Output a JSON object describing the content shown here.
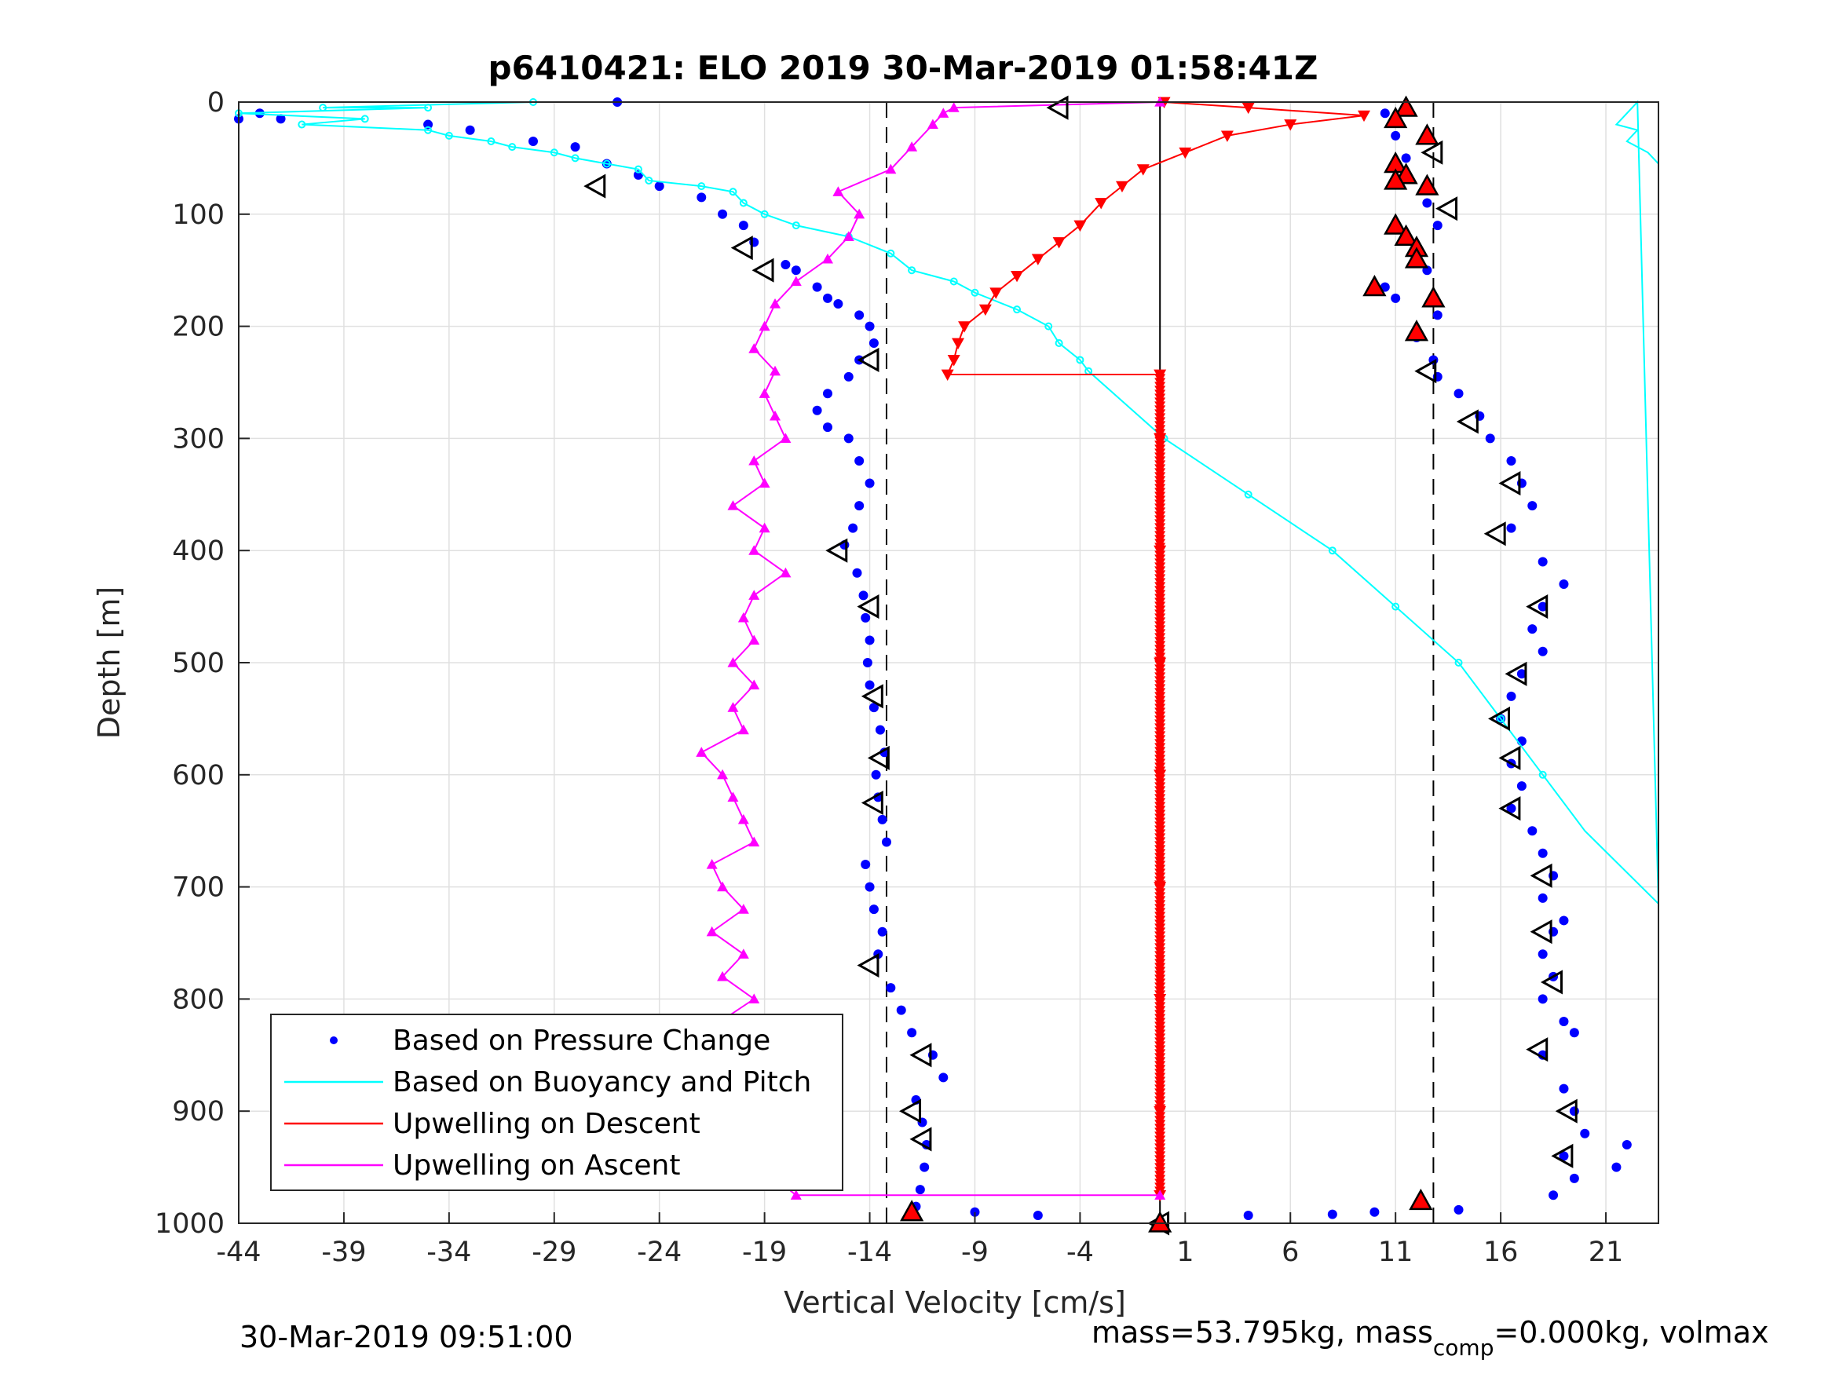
{
  "chart_data": {
    "type": "scatter",
    "title": "p6410421: ELO 2019 30-Mar-2019 01:58:41Z",
    "xlabel": "Vertical Velocity [cm/s]",
    "ylabel": "Depth [m]",
    "xlim": [
      -44,
      23.5
    ],
    "ylim": [
      1000,
      0
    ],
    "y_reversed": true,
    "grid": true,
    "x_ticks": [
      -44,
      -39,
      -34,
      -29,
      -24,
      -19,
      -14,
      -9,
      -4,
      1,
      6,
      11,
      16,
      21
    ],
    "y_ticks": [
      0,
      100,
      200,
      300,
      400,
      500,
      600,
      700,
      800,
      900,
      1000
    ],
    "legend_position": "bottom-left",
    "legend": [
      {
        "label": "Based on Pressure Change",
        "color": "#0000ff",
        "style": "dot"
      },
      {
        "label": "Based on Buoyancy and Pitch",
        "color": "#00ffff",
        "style": "line"
      },
      {
        "label": "Upwelling on Descent",
        "color": "#ff0000",
        "style": "line"
      },
      {
        "label": "Upwelling on Ascent",
        "color": "#ff00ff",
        "style": "line"
      }
    ],
    "reference_lines": {
      "dashed_vertical_x": [
        -13.2,
        12.8
      ],
      "solid_vertical_x": -0.2
    },
    "colors": {
      "pressure": "#0000ff",
      "buoyancy": "#00ffff",
      "descent": "#ff0000",
      "ascent": "#ff00ff",
      "grid": "#e0e0e0"
    },
    "series": [
      {
        "name": "Based on Pressure Change",
        "marker": "dot",
        "points": [
          [
            -26,
            0
          ],
          [
            -44,
            15
          ],
          [
            -43,
            10
          ],
          [
            -42,
            15
          ],
          [
            -35,
            20
          ],
          [
            -33,
            25
          ],
          [
            -30,
            35
          ],
          [
            -28,
            40
          ],
          [
            -26.5,
            55
          ],
          [
            -25,
            65
          ],
          [
            -24,
            75
          ],
          [
            -22,
            85
          ],
          [
            -21,
            100
          ],
          [
            -20,
            110
          ],
          [
            -19.5,
            125
          ],
          [
            -18,
            145
          ],
          [
            -17.5,
            150
          ],
          [
            -16.5,
            165
          ],
          [
            -16,
            175
          ],
          [
            -15.5,
            180
          ],
          [
            -14.5,
            190
          ],
          [
            -14,
            200
          ],
          [
            -13.8,
            215
          ],
          [
            -14.5,
            230
          ],
          [
            -15,
            245
          ],
          [
            -16,
            260
          ],
          [
            -16.5,
            275
          ],
          [
            -16,
            290
          ],
          [
            -15,
            300
          ],
          [
            -14.5,
            320
          ],
          [
            -14,
            340
          ],
          [
            -14.5,
            360
          ],
          [
            -14.8,
            380
          ],
          [
            -15.2,
            395
          ],
          [
            -14.6,
            420
          ],
          [
            -14.3,
            440
          ],
          [
            -14.2,
            460
          ],
          [
            -14.0,
            480
          ],
          [
            -14.1,
            500
          ],
          [
            -14.0,
            520
          ],
          [
            -13.8,
            540
          ],
          [
            -13.5,
            560
          ],
          [
            -13.3,
            580
          ],
          [
            -13.7,
            600
          ],
          [
            -13.6,
            620
          ],
          [
            -13.4,
            640
          ],
          [
            -13.2,
            660
          ],
          [
            -14.2,
            680
          ],
          [
            -14.0,
            700
          ],
          [
            -13.8,
            720
          ],
          [
            -13.4,
            740
          ],
          [
            -13.6,
            760
          ],
          [
            -13.0,
            790
          ],
          [
            -12.5,
            810
          ],
          [
            -12.0,
            830
          ],
          [
            -11.0,
            850
          ],
          [
            -10.5,
            870
          ],
          [
            -11.8,
            890
          ],
          [
            -11.5,
            910
          ],
          [
            -11.3,
            930
          ],
          [
            -11.4,
            950
          ],
          [
            -11.6,
            970
          ],
          [
            -11.8,
            985
          ],
          [
            -9,
            990
          ],
          [
            -6,
            993
          ],
          [
            4,
            993
          ],
          [
            8,
            992
          ],
          [
            10,
            990
          ],
          [
            14,
            988
          ],
          [
            -0.2,
            1000
          ],
          [
            10.5,
            10
          ],
          [
            11,
            30
          ],
          [
            11.5,
            50
          ],
          [
            11,
            70
          ],
          [
            12.5,
            90
          ],
          [
            13,
            110
          ],
          [
            12,
            130
          ],
          [
            12.5,
            150
          ],
          [
            10.5,
            165
          ],
          [
            11,
            175
          ],
          [
            13,
            190
          ],
          [
            12,
            210
          ],
          [
            12.8,
            230
          ],
          [
            13,
            245
          ],
          [
            14,
            260
          ],
          [
            15,
            280
          ],
          [
            15.5,
            300
          ],
          [
            16.5,
            320
          ],
          [
            17,
            340
          ],
          [
            17.5,
            360
          ],
          [
            16.5,
            380
          ],
          [
            18,
            410
          ],
          [
            19,
            430
          ],
          [
            18,
            450
          ],
          [
            17.5,
            470
          ],
          [
            18,
            490
          ],
          [
            17,
            510
          ],
          [
            16.5,
            530
          ],
          [
            16,
            550
          ],
          [
            17,
            570
          ],
          [
            16.5,
            590
          ],
          [
            17,
            610
          ],
          [
            16.5,
            630
          ],
          [
            17.5,
            650
          ],
          [
            18,
            670
          ],
          [
            18.5,
            690
          ],
          [
            18,
            710
          ],
          [
            19,
            730
          ],
          [
            18.5,
            740
          ],
          [
            18,
            760
          ],
          [
            18.5,
            780
          ],
          [
            18,
            800
          ],
          [
            19,
            820
          ],
          [
            19.5,
            830
          ],
          [
            18,
            850
          ],
          [
            19,
            880
          ],
          [
            19.5,
            900
          ],
          [
            20,
            920
          ],
          [
            19,
            940
          ],
          [
            19.5,
            960
          ],
          [
            18.5,
            975
          ],
          [
            22,
            930
          ],
          [
            21.5,
            950
          ]
        ]
      },
      {
        "name": "Based on Buoyancy and Pitch",
        "marker": "open-circle",
        "points": [
          [
            -30,
            0
          ],
          [
            -40,
            5
          ],
          [
            -35,
            5
          ],
          [
            -44,
            10
          ],
          [
            -38,
            15
          ],
          [
            -41,
            20
          ],
          [
            -35,
            25
          ],
          [
            -34,
            30
          ],
          [
            -32,
            35
          ],
          [
            -31,
            40
          ],
          [
            -29,
            45
          ],
          [
            -28,
            50
          ],
          [
            -26.5,
            55
          ],
          [
            -25,
            60
          ],
          [
            -24.5,
            70
          ],
          [
            -22,
            75
          ],
          [
            -20.5,
            80
          ],
          [
            -20,
            90
          ],
          [
            -19,
            100
          ],
          [
            -17.5,
            110
          ],
          [
            -15,
            120
          ],
          [
            -13,
            135
          ],
          [
            -12,
            150
          ],
          [
            -10,
            160
          ],
          [
            -9,
            170
          ],
          [
            -7,
            185
          ],
          [
            -5.5,
            200
          ],
          [
            -5,
            215
          ],
          [
            -4,
            230
          ],
          [
            -3.6,
            240
          ],
          [
            0,
            300
          ],
          [
            4,
            350
          ],
          [
            8,
            400
          ],
          [
            11,
            450
          ],
          [
            14,
            500
          ],
          [
            16,
            550
          ],
          [
            18,
            600
          ],
          [
            20,
            650
          ],
          [
            23.5,
            715
          ],
          [
            22.5,
            0
          ],
          [
            22,
            10
          ],
          [
            21.5,
            20
          ],
          [
            22.5,
            25
          ],
          [
            22,
            35
          ],
          [
            23,
            45
          ],
          [
            23.5,
            55
          ]
        ]
      },
      {
        "name": "Upwelling on Descent",
        "marker": "down-triangle",
        "points": [
          [
            0,
            0
          ],
          [
            4,
            5
          ],
          [
            9.5,
            12
          ],
          [
            6,
            20
          ],
          [
            3,
            30
          ],
          [
            1,
            45
          ],
          [
            -1,
            60
          ],
          [
            -2,
            75
          ],
          [
            -3,
            90
          ],
          [
            -4,
            110
          ],
          [
            -5,
            125
          ],
          [
            -6,
            140
          ],
          [
            -7,
            155
          ],
          [
            -8,
            170
          ],
          [
            -8.5,
            185
          ],
          [
            -9.5,
            200
          ],
          [
            -9.8,
            215
          ],
          [
            -10,
            230
          ],
          [
            -10.3,
            243
          ],
          [
            -0.2,
            243
          ],
          [
            -0.2,
            300
          ],
          [
            -0.2,
            400
          ],
          [
            -0.2,
            500
          ],
          [
            -0.2,
            600
          ],
          [
            -0.2,
            700
          ],
          [
            -0.2,
            800
          ],
          [
            -0.2,
            900
          ],
          [
            -0.2,
            975
          ]
        ]
      },
      {
        "name": "Upwelling on Ascent",
        "marker": "up-triangle",
        "points": [
          [
            -0.2,
            975
          ],
          [
            -17.5,
            975
          ],
          [
            -18.5,
            960
          ],
          [
            -19,
            940
          ],
          [
            -18,
            920
          ],
          [
            -20.5,
            895
          ],
          [
            -19,
            880
          ],
          [
            -19.5,
            860
          ],
          [
            -19.5,
            840
          ],
          [
            -21.5,
            825
          ],
          [
            -19.5,
            800
          ],
          [
            -21,
            780
          ],
          [
            -20,
            760
          ],
          [
            -21.5,
            740
          ],
          [
            -20,
            720
          ],
          [
            -21,
            700
          ],
          [
            -21.5,
            680
          ],
          [
            -19.5,
            660
          ],
          [
            -20,
            640
          ],
          [
            -20.5,
            620
          ],
          [
            -21,
            600
          ],
          [
            -22,
            580
          ],
          [
            -20,
            560
          ],
          [
            -20.5,
            540
          ],
          [
            -19.5,
            520
          ],
          [
            -20.5,
            500
          ],
          [
            -19.5,
            480
          ],
          [
            -20,
            460
          ],
          [
            -19.5,
            440
          ],
          [
            -18,
            420
          ],
          [
            -19.5,
            400
          ],
          [
            -19,
            380
          ],
          [
            -20.5,
            360
          ],
          [
            -19,
            340
          ],
          [
            -19.5,
            320
          ],
          [
            -18,
            300
          ],
          [
            -18.5,
            280
          ],
          [
            -19,
            260
          ],
          [
            -18.5,
            240
          ],
          [
            -19.5,
            220
          ],
          [
            -19,
            200
          ],
          [
            -18.5,
            180
          ],
          [
            -17.5,
            160
          ],
          [
            -16,
            140
          ],
          [
            -15,
            120
          ],
          [
            -14.5,
            100
          ],
          [
            -15.5,
            80
          ],
          [
            -13,
            60
          ],
          [
            -12,
            40
          ],
          [
            -11,
            20
          ],
          [
            -10.5,
            10
          ],
          [
            -10,
            5
          ],
          [
            -0.2,
            0
          ]
        ]
      },
      {
        "name": "markers-open-left",
        "marker": "open-left-triangle",
        "points": [
          [
            -5,
            5
          ],
          [
            12.8,
            45
          ],
          [
            13.5,
            95
          ],
          [
            12.5,
            240
          ],
          [
            14.5,
            285
          ],
          [
            16.5,
            340
          ],
          [
            15.8,
            385
          ],
          [
            17.8,
            450
          ],
          [
            16.8,
            510
          ],
          [
            16,
            550
          ],
          [
            16.5,
            585
          ],
          [
            16.5,
            630
          ],
          [
            18,
            690
          ],
          [
            18,
            740
          ],
          [
            18.5,
            785
          ],
          [
            17.8,
            845
          ],
          [
            19.2,
            900
          ],
          [
            19,
            940
          ],
          [
            -14,
            230
          ],
          [
            -15.5,
            400
          ],
          [
            -14,
            450
          ],
          [
            -13.8,
            530
          ],
          [
            -13.5,
            585
          ],
          [
            -13.8,
            625
          ],
          [
            -14,
            770
          ],
          [
            -11.5,
            850
          ],
          [
            -12,
            900
          ],
          [
            -11.5,
            925
          ],
          [
            -20,
            130
          ],
          [
            -19,
            150
          ],
          [
            -27,
            75
          ],
          [
            -0.2,
            1000
          ]
        ]
      },
      {
        "name": "markers-filled-red",
        "marker": "red-filled-triangle",
        "points": [
          [
            11.5,
            5
          ],
          [
            11,
            15
          ],
          [
            12.5,
            30
          ],
          [
            11,
            55
          ],
          [
            11.5,
            65
          ],
          [
            11,
            70
          ],
          [
            12.5,
            75
          ],
          [
            11,
            110
          ],
          [
            11.5,
            120
          ],
          [
            12,
            130
          ],
          [
            12,
            140
          ],
          [
            10,
            165
          ],
          [
            12.8,
            175
          ],
          [
            12,
            205
          ],
          [
            12.2,
            980
          ],
          [
            -12,
            990
          ],
          [
            -0.2,
            1000
          ]
        ]
      }
    ]
  },
  "footer": {
    "timestamp": "30-Mar-2019 09:51:00",
    "mass_prefix": "mass=53.795kg, mass",
    "mass_sub": "comp",
    "mass_suffix": "=0.000kg, volmax"
  }
}
